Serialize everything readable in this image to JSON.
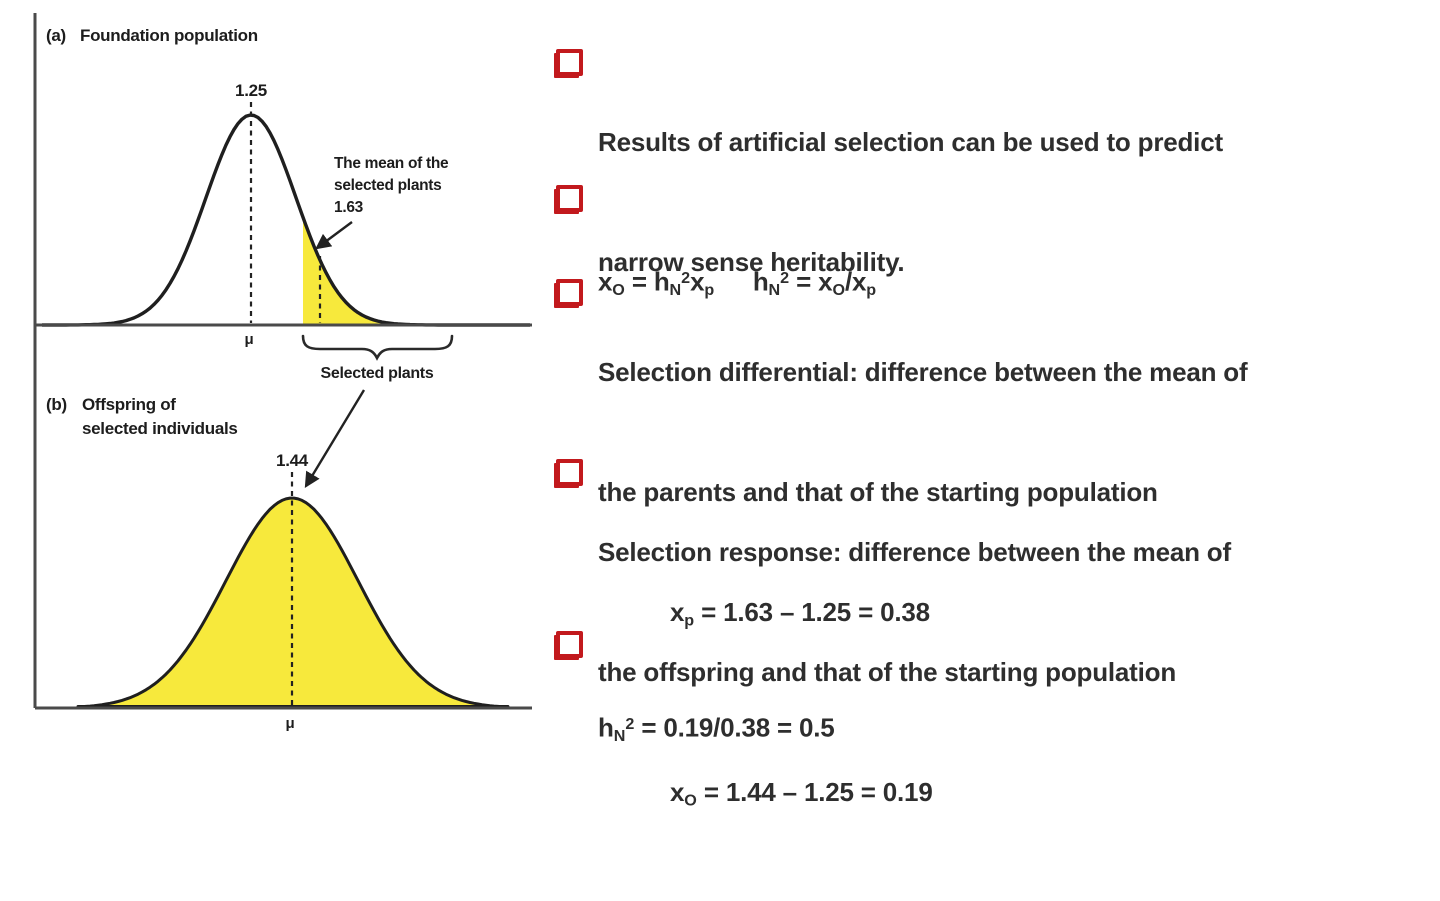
{
  "colors": {
    "highlight": "#F7E93C",
    "accent_red": "#C2191D",
    "ink": "#1d1d1d",
    "text": "#2e2e2e",
    "axis": "#4a4a4a"
  },
  "figure": {
    "panel_a": {
      "label": "(a)",
      "title": "Foundation population",
      "mean_label": "1.25",
      "mu": "μ",
      "annotation_line1": "The mean of the",
      "annotation_line2": "selected plants",
      "annotation_value": "1.63",
      "brace_label": "Selected plants"
    },
    "panel_b": {
      "label": "(b)",
      "title_line1": "Offspring of",
      "title_line2": "selected individuals",
      "mean_label": "1.44",
      "mu": "μ"
    }
  },
  "bullets": [
    {
      "lines": [
        "Results of artificial selection can be used to predict",
        "narrow sense heritability."
      ]
    },
    {
      "formula": "x_{O} = h_{N}^{2}x_{p}  h_{N}^{2} = x_{O}/x_{p}"
    },
    {
      "lines": [
        "Selection differential: difference between the mean of",
        "the parents and that of the starting population"
      ],
      "formula": "x_{p} = 1.63 – 1.25 = 0.38"
    },
    {
      "lines": [
        "Selection response: difference between the mean of",
        "the offspring and that of the starting population"
      ],
      "formula": "x_{O} = 1.44 – 1.25 = 0.19"
    },
    {
      "formula": "h_{N}^{2} = 0.19/0.38 = 0.5"
    }
  ]
}
